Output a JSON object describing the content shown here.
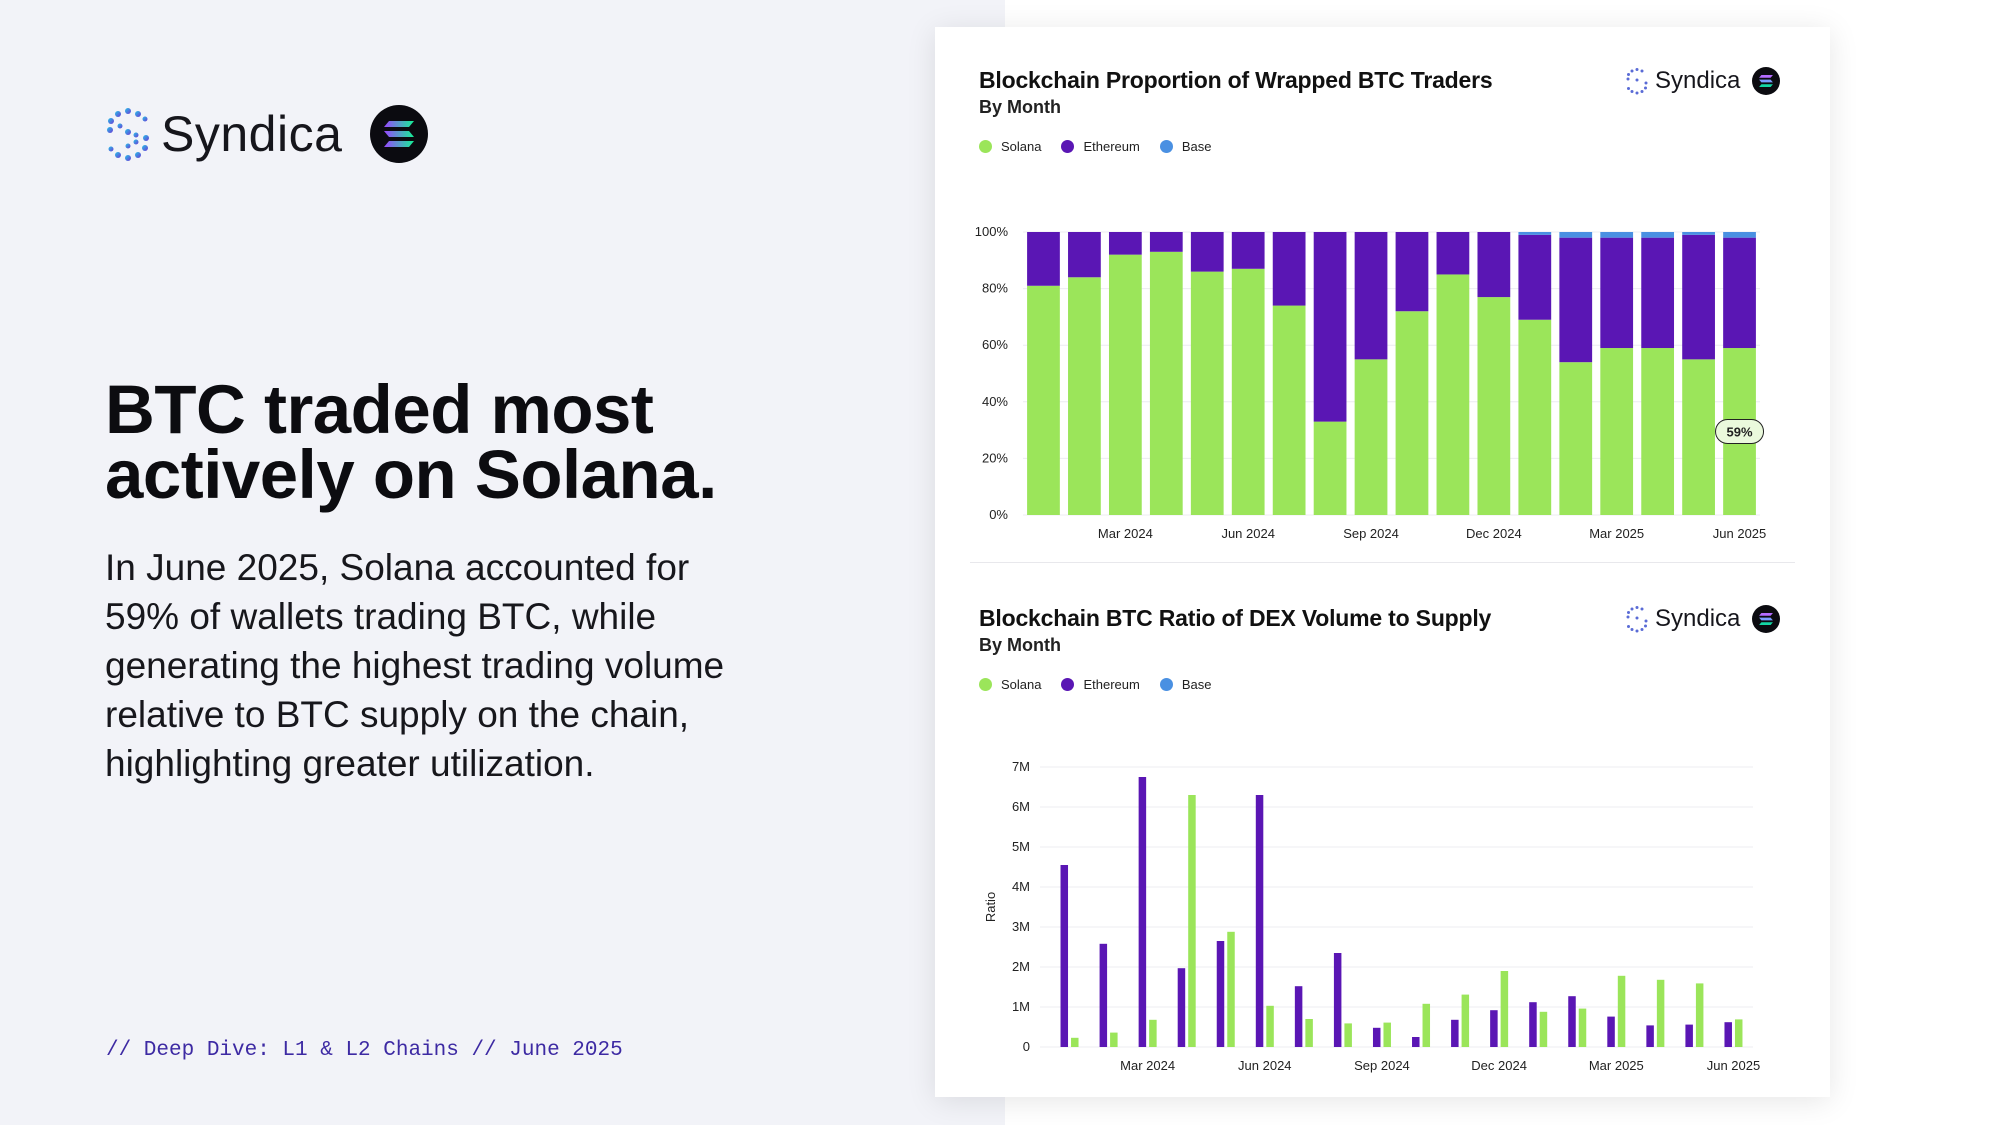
{
  "left": {
    "brand_name": "Syndica",
    "headline_line1": "BTC traded most",
    "headline_line2": "actively on Solana.",
    "body": "In June 2025, Solana accounted for 59% of wallets trading BTC, while generating the highest trading volume relative to BTC supply on the chain, highlighting greater utilization.",
    "footer": "// Deep Dive: L1 & L2 Chains // June 2025"
  },
  "colors": {
    "solana": "#9be55a",
    "ethereum": "#5a16b4",
    "base": "#4a90e2",
    "footer": "#3d2aa3"
  },
  "icons": [
    "syndica-logo-icon",
    "solana-logo-icon"
  ],
  "chart_data": [
    {
      "type": "bar",
      "stacked": true,
      "title": "Blockchain Proportion of Wrapped BTC Traders",
      "subtitle": "By Month",
      "brand": "Syndica",
      "legend": [
        "Solana",
        "Ethereum",
        "Base"
      ],
      "legend_position": "top-left",
      "y_ticks": [
        "0%",
        "20%",
        "40%",
        "60%",
        "80%",
        "100%"
      ],
      "ylim": [
        0,
        100
      ],
      "x_tick_labels": [
        "Mar 2024",
        "Jun 2024",
        "Sep 2024",
        "Dec 2024",
        "Mar 2025",
        "Jun 2025"
      ],
      "x_tick_index": [
        2,
        5,
        8,
        11,
        14,
        17
      ],
      "categories": [
        "Jan 2024",
        "Feb 2024",
        "Mar 2024",
        "Apr 2024",
        "May 2024",
        "Jun 2024",
        "Jul 2024",
        "Aug 2024",
        "Sep 2024",
        "Oct 2024",
        "Nov 2024",
        "Dec 2024",
        "Jan 2025",
        "Feb 2025",
        "Mar 2025",
        "Apr 2025",
        "May 2025",
        "Jun 2025"
      ],
      "series": [
        {
          "name": "Solana",
          "values": [
            81,
            84,
            92,
            93,
            86,
            87,
            74,
            33,
            55,
            72,
            85,
            77,
            69,
            54,
            59,
            59,
            55,
            59
          ]
        },
        {
          "name": "Ethereum",
          "values": [
            19,
            16,
            8,
            7,
            14,
            13,
            26,
            67,
            45,
            28,
            15,
            23,
            30,
            44,
            39,
            39,
            44,
            39
          ]
        },
        {
          "name": "Base",
          "values": [
            0,
            0,
            0,
            0,
            0,
            0,
            0,
            0,
            0,
            0,
            0,
            0,
            1,
            2,
            2,
            2,
            1,
            2
          ]
        }
      ],
      "annotation": "59%"
    },
    {
      "type": "bar",
      "stacked": false,
      "title": "Blockchain BTC Ratio of DEX Volume to Supply",
      "subtitle": "By Month",
      "brand": "Syndica",
      "legend": [
        "Solana",
        "Ethereum",
        "Base"
      ],
      "legend_position": "top-left",
      "ylabel": "Ratio",
      "y_ticks": [
        "0",
        "1M",
        "2M",
        "3M",
        "4M",
        "5M",
        "6M",
        "7M"
      ],
      "ylim": [
        0,
        7000000
      ],
      "x_tick_labels": [
        "Mar 2024",
        "Jun 2024",
        "Sep 2024",
        "Dec 2024",
        "Mar 2025",
        "Jun 2025"
      ],
      "x_tick_index": [
        2,
        5,
        8,
        11,
        14,
        17
      ],
      "categories": [
        "Jan 2024",
        "Feb 2024",
        "Mar 2024",
        "Apr 2024",
        "May 2024",
        "Jun 2024",
        "Jul 2024",
        "Aug 2024",
        "Sep 2024",
        "Oct 2024",
        "Nov 2024",
        "Dec 2024",
        "Jan 2025",
        "Feb 2025",
        "Mar 2025",
        "Apr 2025",
        "May 2025",
        "Jun 2025"
      ],
      "series": [
        {
          "name": "Ethereum",
          "values": [
            4550000,
            2580000,
            6750000,
            1970000,
            2650000,
            6300000,
            1520000,
            2350000,
            480000,
            250000,
            680000,
            920000,
            1120000,
            1270000,
            760000,
            540000,
            560000,
            620000
          ]
        },
        {
          "name": "Solana",
          "values": [
            230000,
            360000,
            680000,
            6300000,
            2880000,
            1030000,
            700000,
            590000,
            610000,
            1080000,
            1310000,
            1900000,
            880000,
            960000,
            1780000,
            1680000,
            1590000,
            690000
          ]
        },
        {
          "name": "Base",
          "values": [
            0,
            0,
            0,
            0,
            0,
            0,
            0,
            0,
            0,
            0,
            0,
            0,
            0,
            0,
            0,
            0,
            0,
            0
          ]
        }
      ]
    }
  ]
}
